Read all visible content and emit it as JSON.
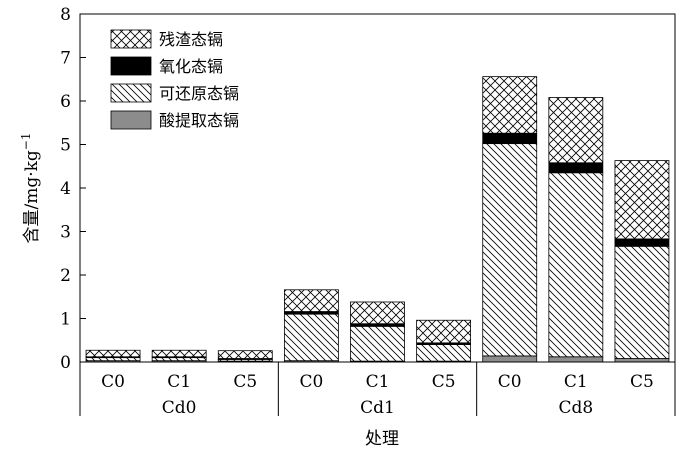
{
  "chart_data": {
    "type": "bar",
    "stacked": true,
    "groups": [
      {
        "label": "Cd0",
        "categories": [
          "C0",
          "C1",
          "C5"
        ]
      },
      {
        "label": "Cd1",
        "categories": [
          "C0",
          "C1",
          "C5"
        ]
      },
      {
        "label": "Cd8",
        "categories": [
          "C0",
          "C1",
          "C5"
        ]
      }
    ],
    "categories": [
      "C0",
      "C1",
      "C5",
      "C0",
      "C1",
      "C5",
      "C0",
      "C1",
      "C5"
    ],
    "series": [
      {
        "name": "酸提取态镉",
        "pattern": "solid-gray",
        "color": "#8c8c8c",
        "values": [
          0.03,
          0.03,
          0.02,
          0.03,
          0.02,
          0.02,
          0.14,
          0.12,
          0.08
        ]
      },
      {
        "name": "可还原态镉",
        "pattern": "diagonal-hatch",
        "color": "#000000",
        "values": [
          0.07,
          0.07,
          0.04,
          1.07,
          0.8,
          0.38,
          4.88,
          4.23,
          2.58
        ]
      },
      {
        "name": "氧化态镉",
        "pattern": "solid-black",
        "color": "#000000",
        "values": [
          0.02,
          0.02,
          0.02,
          0.06,
          0.06,
          0.04,
          0.24,
          0.23,
          0.17
        ]
      },
      {
        "name": "残渣态镉",
        "pattern": "cross-hatch",
        "color": "#000000",
        "values": [
          0.15,
          0.15,
          0.18,
          0.5,
          0.5,
          0.52,
          1.3,
          1.5,
          1.8
        ]
      }
    ],
    "yticks": [
      "0",
      "1",
      "2",
      "3",
      "4",
      "5",
      "6",
      "7",
      "8"
    ],
    "ylim": [
      0,
      8
    ],
    "ylabel": "含量/mg·kg",
    "ylabel_sup": "−1",
    "xlabel": "处理",
    "legend_position": "top-left",
    "grid": false
  }
}
